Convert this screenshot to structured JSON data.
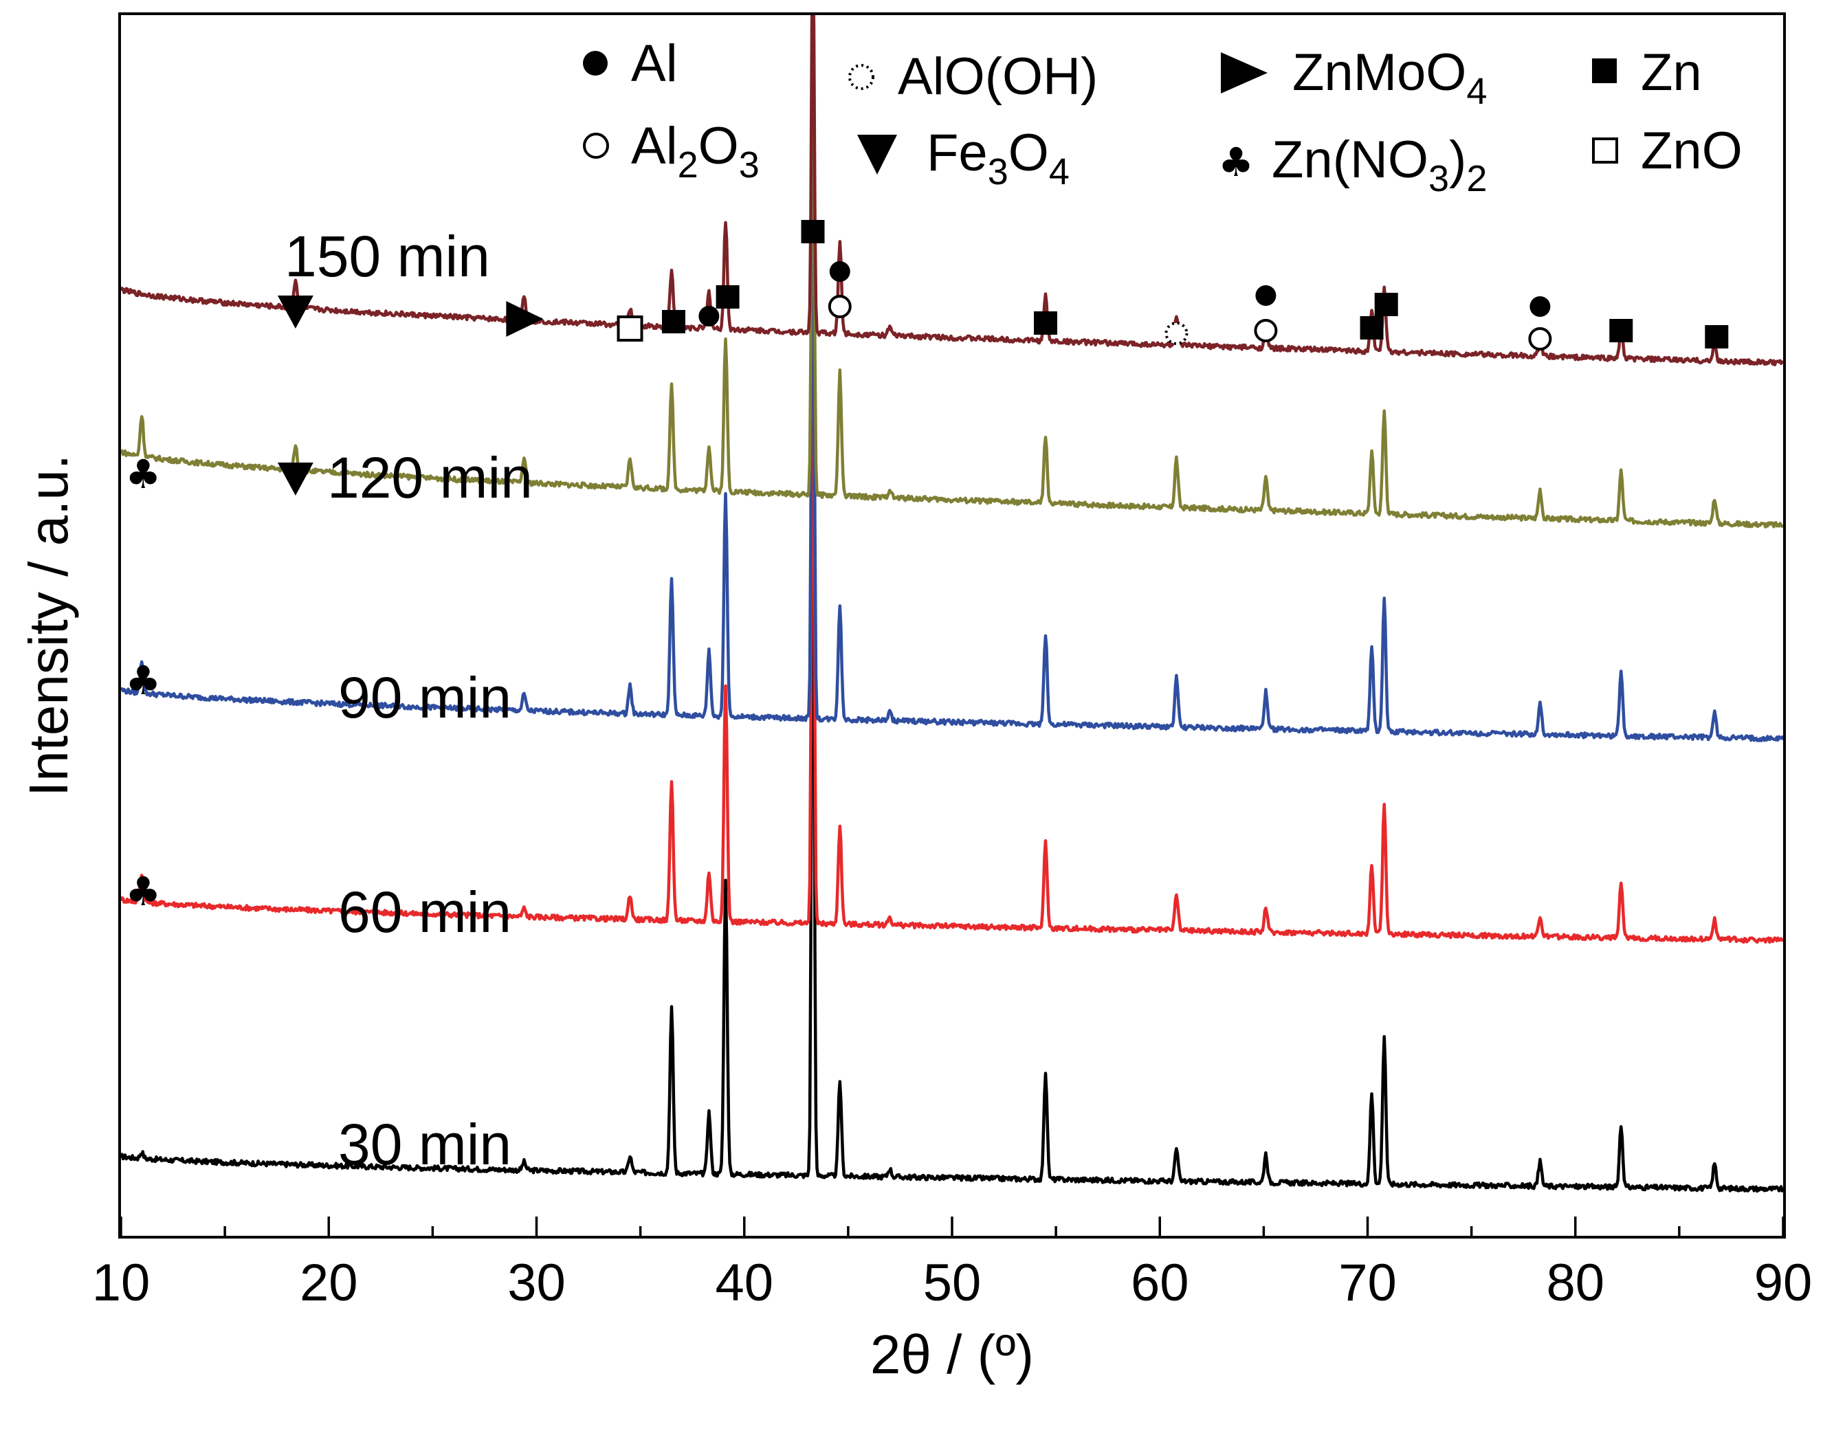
{
  "chart_data": {
    "type": "line",
    "xlabel": "2θ / (º)",
    "ylabel": "Intensity / a.u.",
    "xlim": [
      10,
      90
    ],
    "x_ticks": [
      10,
      20,
      30,
      40,
      50,
      60,
      70,
      80,
      90
    ],
    "x_minor_step": 5,
    "y_ticks": [],
    "legend": {
      "position": "top-right",
      "entries": [
        {
          "symbol": "filled-circle",
          "label": "Al"
        },
        {
          "symbol": "dotted-circle",
          "label": "AlO(OH)"
        },
        {
          "symbol": "right-triangle",
          "label": "ZnMoO4"
        },
        {
          "symbol": "filled-square",
          "label": "Zn"
        },
        {
          "symbol": "open-circle",
          "label": "Al2O3"
        },
        {
          "symbol": "down-triangle",
          "label": "Fe3O4"
        },
        {
          "symbol": "club",
          "label": "Zn(NO3)2"
        },
        {
          "symbol": "open-square",
          "label": "ZnO"
        }
      ]
    },
    "series": [
      {
        "name": "30 min",
        "color": "#000000",
        "baseline": {
          "start": 8,
          "end": 0
        },
        "peaks": [
          [
            11,
            1.5
          ],
          [
            29.4,
            2
          ],
          [
            34.5,
            4
          ],
          [
            36.5,
            40
          ],
          [
            38.3,
            15
          ],
          [
            39.1,
            71
          ],
          [
            43.3,
            194
          ],
          [
            44.6,
            23
          ],
          [
            47,
            2
          ],
          [
            54.5,
            26
          ],
          [
            60.8,
            8
          ],
          [
            65.1,
            7
          ],
          [
            70.2,
            22
          ],
          [
            70.8,
            36
          ],
          [
            78.3,
            6
          ],
          [
            82.2,
            15
          ],
          [
            86.7,
            6
          ]
        ]
      },
      {
        "name": "60 min",
        "color": "#e8292b",
        "baseline": {
          "start": 10,
          "end": 0
        },
        "peaks": [
          [
            11,
            7
          ],
          [
            29.4,
            2
          ],
          [
            34.5,
            6
          ],
          [
            36.5,
            34
          ],
          [
            38.3,
            12
          ],
          [
            39.1,
            57
          ],
          [
            43.3,
            165
          ],
          [
            44.6,
            24
          ],
          [
            47,
            2
          ],
          [
            54.5,
            21
          ],
          [
            60.8,
            9
          ],
          [
            65.1,
            6
          ],
          [
            70.2,
            17
          ],
          [
            70.8,
            32
          ],
          [
            78.3,
            5
          ],
          [
            82.2,
            13
          ],
          [
            86.7,
            5
          ]
        ]
      },
      {
        "name": "90 min",
        "color": "#2f4ea0",
        "baseline": {
          "start": 12,
          "end": 0
        },
        "peaks": [
          [
            11,
            8
          ],
          [
            29.4,
            4
          ],
          [
            34.5,
            7
          ],
          [
            36.5,
            33
          ],
          [
            38.3,
            16
          ],
          [
            39.1,
            54
          ],
          [
            43.3,
            162
          ],
          [
            44.6,
            28
          ],
          [
            47,
            2
          ],
          [
            54.5,
            22
          ],
          [
            60.8,
            12
          ],
          [
            65.1,
            9
          ],
          [
            70.2,
            20
          ],
          [
            70.8,
            32
          ],
          [
            78.3,
            8
          ],
          [
            82.2,
            16
          ],
          [
            86.7,
            6
          ]
        ]
      },
      {
        "name": "120 min",
        "color": "#7f7f35",
        "baseline": {
          "start": 18,
          "end": 0
        },
        "peaks": [
          [
            11,
            10
          ],
          [
            18.4,
            6
          ],
          [
            29.4,
            6
          ],
          [
            34.5,
            7
          ],
          [
            36.5,
            25
          ],
          [
            38.3,
            11
          ],
          [
            39.1,
            37
          ],
          [
            43.3,
            122
          ],
          [
            44.6,
            30
          ],
          [
            47,
            2
          ],
          [
            54.5,
            16
          ],
          [
            60.8,
            12
          ],
          [
            65.1,
            8
          ],
          [
            70.2,
            15
          ],
          [
            70.8,
            25
          ],
          [
            78.3,
            7
          ],
          [
            82.2,
            12
          ],
          [
            86.7,
            6
          ]
        ]
      },
      {
        "name": "150 min",
        "color": "#7b2327",
        "baseline": {
          "start": 18,
          "end": 0
        },
        "peaks": [
          [
            18.4,
            7
          ],
          [
            29.4,
            6
          ],
          [
            34.5,
            4
          ],
          [
            36.5,
            14
          ],
          [
            38.3,
            9
          ],
          [
            39.1,
            26
          ],
          [
            43.3,
            100
          ],
          [
            44.6,
            22
          ],
          [
            47,
            2
          ],
          [
            54.5,
            11
          ],
          [
            60.8,
            7
          ],
          [
            65.1,
            5
          ],
          [
            70.2,
            10
          ],
          [
            70.8,
            16
          ],
          [
            78.3,
            4
          ],
          [
            82.2,
            7
          ],
          [
            86.7,
            4
          ]
        ]
      }
    ],
    "annotations": [
      {
        "label": "150 min"
      },
      {
        "label": "120 min"
      },
      {
        "label": "90 min"
      },
      {
        "label": "60 min"
      },
      {
        "label": "30 min"
      }
    ]
  }
}
